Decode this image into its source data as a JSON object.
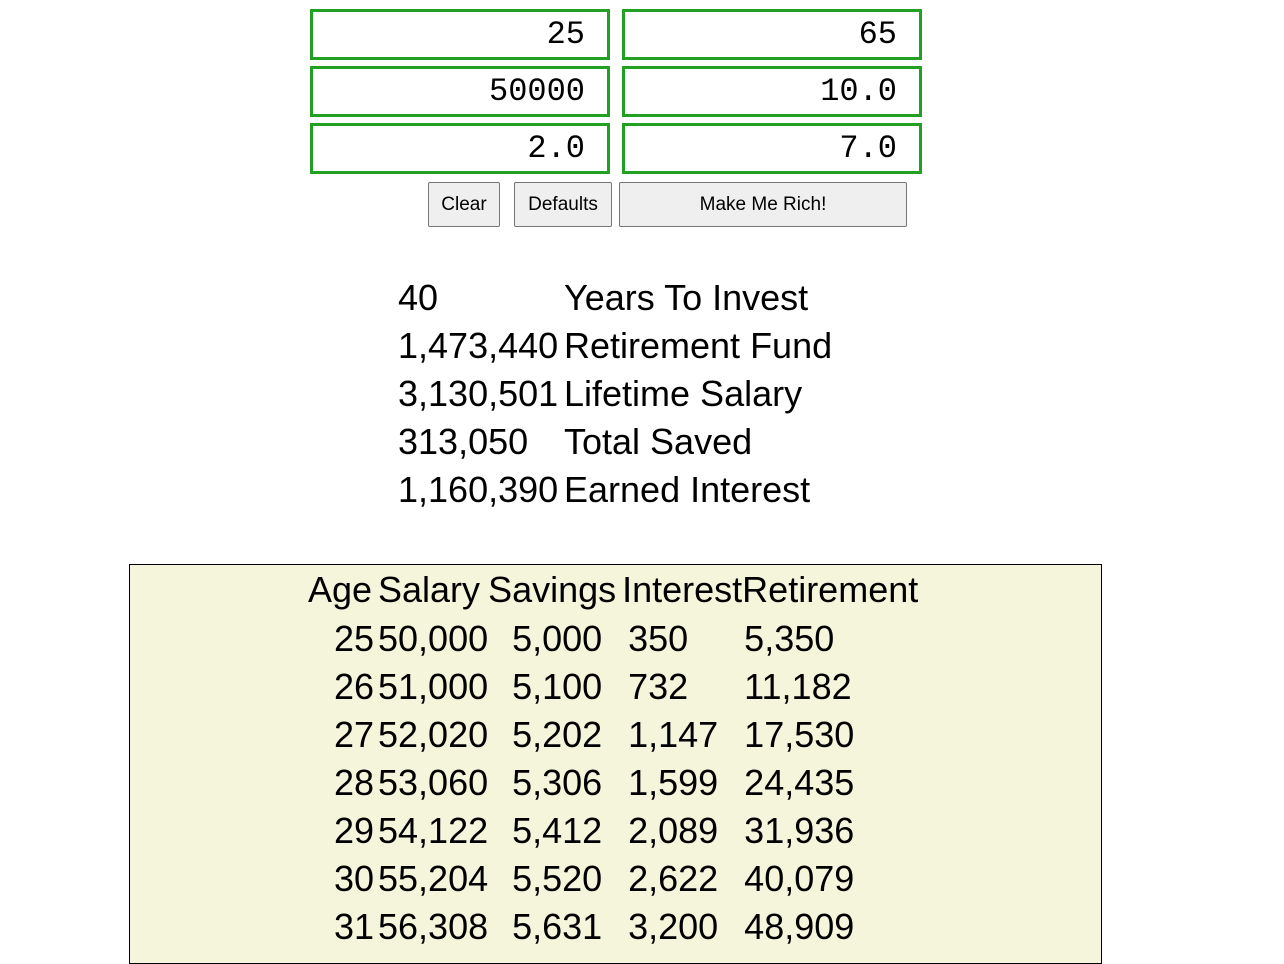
{
  "inputs": {
    "current_age": "25",
    "retirement_age": "65",
    "salary": "50000",
    "savings_percent": "10.0",
    "raise_percent": "2.0",
    "interest_percent": "7.0"
  },
  "buttons": {
    "clear": "Clear",
    "defaults": "Defaults",
    "calculate": "Make Me Rich!"
  },
  "summary": [
    {
      "value": "40",
      "label": "Years To Invest"
    },
    {
      "value": "1,473,440",
      "label": "Retirement Fund"
    },
    {
      "value": "3,130,501",
      "label": "Lifetime Salary"
    },
    {
      "value": "313,050",
      "label": "Total Saved"
    },
    {
      "value": "1,160,390",
      "label": "Earned Interest"
    }
  ],
  "projection": {
    "headers": [
      "Age",
      "Salary",
      "Savings",
      "Interest",
      "Retirement"
    ],
    "rows": [
      [
        "25",
        "50,000",
        "5,000",
        "350",
        "5,350"
      ],
      [
        "26",
        "51,000",
        "5,100",
        "732",
        "11,182"
      ],
      [
        "27",
        "52,020",
        "5,202",
        "1,147",
        "17,530"
      ],
      [
        "28",
        "53,060",
        "5,306",
        "1,599",
        "24,435"
      ],
      [
        "29",
        "54,122",
        "5,412",
        "2,089",
        "31,936"
      ],
      [
        "30",
        "55,204",
        "5,520",
        "2,622",
        "40,079"
      ],
      [
        "31",
        "56,308",
        "5,631",
        "3,200",
        "48,909"
      ]
    ]
  },
  "colors": {
    "field_border": "#22a022",
    "table_background": "#f5f5dc"
  }
}
